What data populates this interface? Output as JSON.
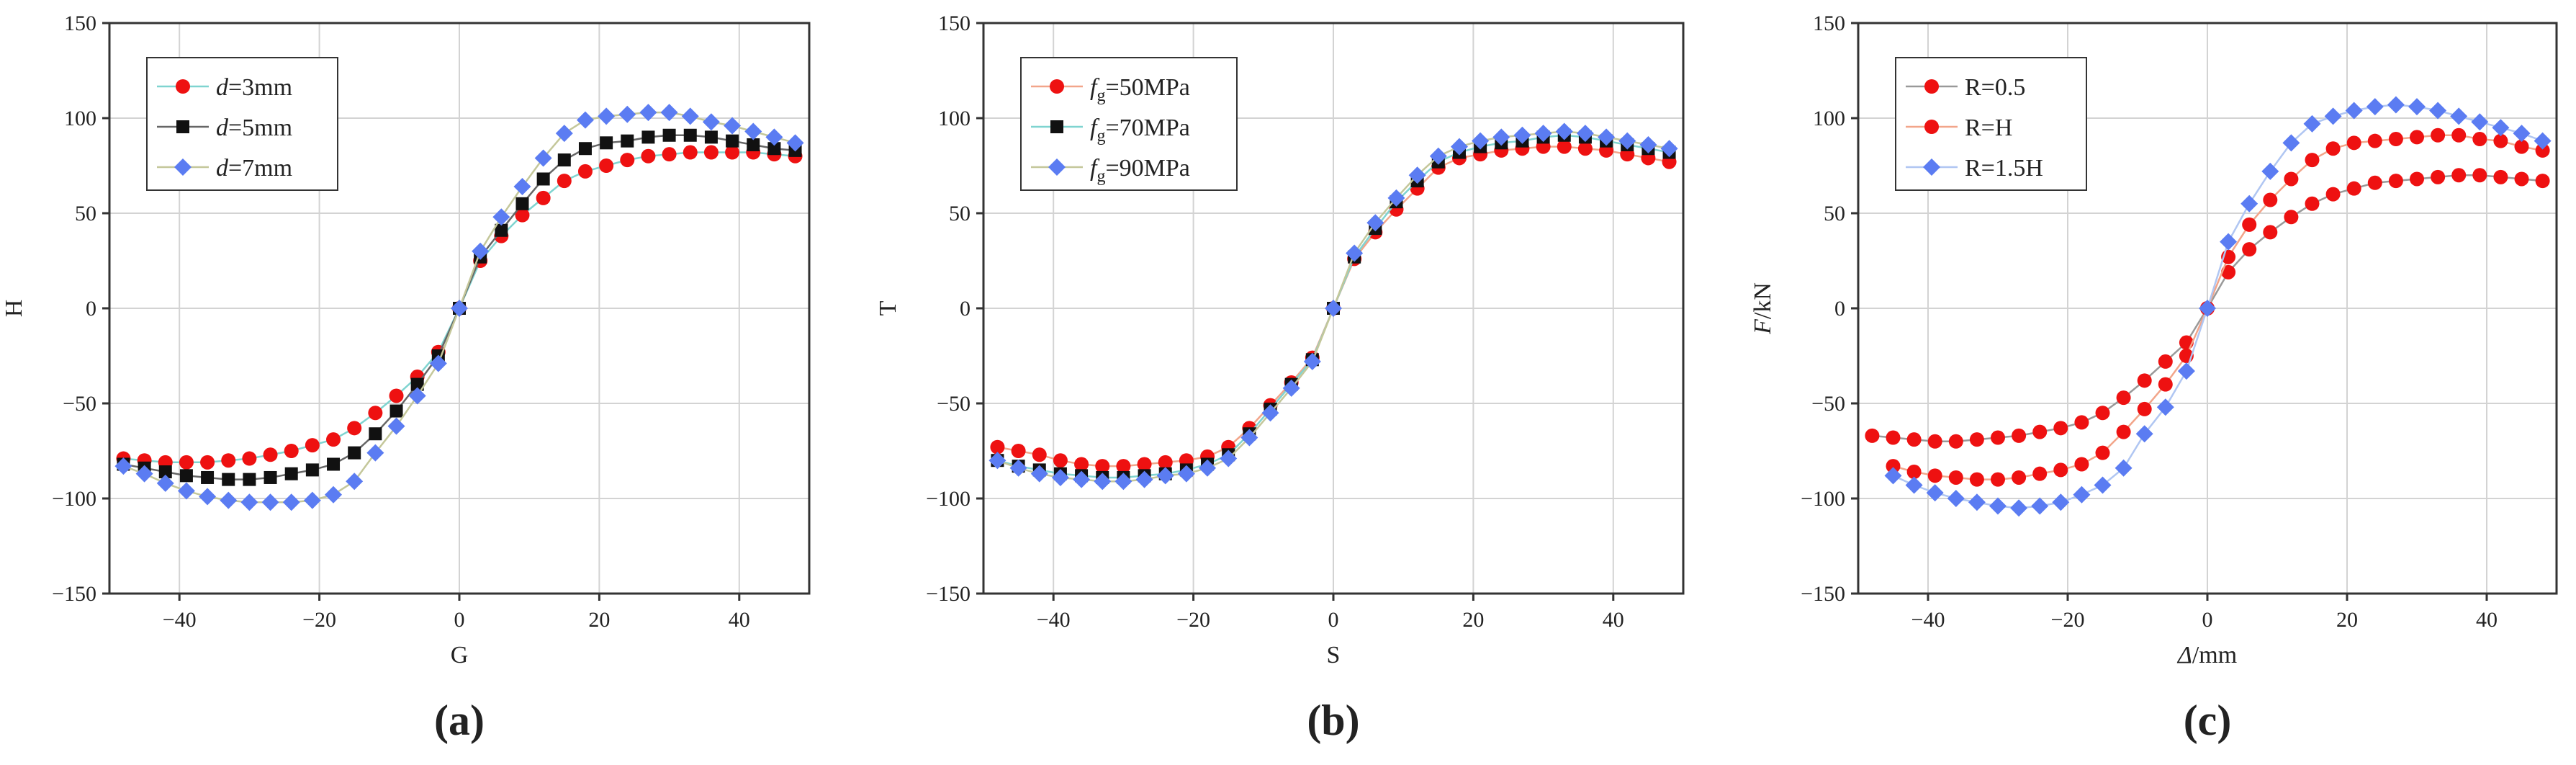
{
  "chart_data": [
    {
      "type": "line",
      "panel_label": "(a)",
      "xlabel": "G",
      "ylabel": "H",
      "xlim": [
        -50,
        50
      ],
      "ylim": [
        -150,
        150
      ],
      "xticks": [
        -40,
        -20,
        0,
        20,
        40
      ],
      "yticks": [
        -150,
        -100,
        -50,
        0,
        50,
        100,
        150
      ],
      "grid": true,
      "legend_position": "top-left",
      "series": [
        {
          "name": "d=3mm",
          "legend_italic": "d",
          "legend_rest": "=3mm",
          "marker": "circle",
          "color": "#ee1111",
          "line_color": "#7fd4d0",
          "x": [
            -48,
            -45,
            -42,
            -39,
            -36,
            -33,
            -30,
            -27,
            -24,
            -21,
            -18,
            -15,
            -12,
            -9,
            -6,
            -3,
            0,
            3,
            6,
            9,
            12,
            15,
            18,
            21,
            24,
            27,
            30,
            33,
            36,
            39,
            42,
            45,
            48
          ],
          "y": [
            -79,
            -80,
            -81,
            -81,
            -81,
            -80,
            -79,
            -77,
            -75,
            -72,
            -69,
            -63,
            -55,
            -46,
            -36,
            -23,
            0,
            25,
            38,
            49,
            58,
            67,
            72,
            75,
            78,
            80,
            81,
            82,
            82,
            82,
            82,
            81,
            80
          ]
        },
        {
          "name": "d=5mm",
          "legend_italic": "d",
          "legend_rest": "=5mm",
          "marker": "square",
          "color": "#111111",
          "line_color": "#666666",
          "x": [
            -48,
            -45,
            -42,
            -39,
            -36,
            -33,
            -30,
            -27,
            -24,
            -21,
            -18,
            -15,
            -12,
            -9,
            -6,
            -3,
            0,
            3,
            6,
            9,
            12,
            15,
            18,
            21,
            24,
            27,
            30,
            33,
            36,
            39,
            42,
            45,
            48
          ],
          "y": [
            -82,
            -84,
            -86,
            -88,
            -89,
            -90,
            -90,
            -89,
            -87,
            -85,
            -82,
            -76,
            -66,
            -54,
            -40,
            -25,
            0,
            27,
            41,
            55,
            68,
            78,
            84,
            87,
            88,
            90,
            91,
            91,
            90,
            88,
            86,
            84,
            83
          ]
        },
        {
          "name": "d=7mm",
          "legend_italic": "d",
          "legend_rest": "=7mm",
          "marker": "diamond",
          "color": "#5b7cf2",
          "line_color": "#c4c79a",
          "x": [
            -48,
            -45,
            -42,
            -39,
            -36,
            -33,
            -30,
            -27,
            -24,
            -21,
            -18,
            -15,
            -12,
            -9,
            -6,
            -3,
            0,
            3,
            6,
            9,
            12,
            15,
            18,
            21,
            24,
            27,
            30,
            33,
            36,
            39,
            42,
            45,
            48
          ],
          "y": [
            -83,
            -87,
            -92,
            -96,
            -99,
            -101,
            -102,
            -102,
            -102,
            -101,
            -98,
            -91,
            -76,
            -62,
            -46,
            -29,
            0,
            30,
            48,
            64,
            79,
            92,
            99,
            101,
            102,
            103,
            103,
            101,
            98,
            96,
            93,
            90,
            87
          ]
        }
      ]
    },
    {
      "type": "line",
      "panel_label": "(b)",
      "xlabel": "S",
      "ylabel": "T",
      "xlim": [
        -50,
        50
      ],
      "ylim": [
        -150,
        150
      ],
      "xticks": [
        -40,
        -20,
        0,
        20,
        40
      ],
      "yticks": [
        -150,
        -100,
        -50,
        0,
        50,
        100,
        150
      ],
      "grid": true,
      "legend_position": "top-left",
      "series": [
        {
          "name": "fg=50MPa",
          "legend_italic": "f",
          "legend_sub": "g",
          "legend_rest": "=50MPa",
          "marker": "circle",
          "color": "#ee1111",
          "line_color": "#f2a58a",
          "x": [
            -48,
            -45,
            -42,
            -39,
            -36,
            -33,
            -30,
            -27,
            -24,
            -21,
            -18,
            -15,
            -12,
            -9,
            -6,
            -3,
            0,
            3,
            6,
            9,
            12,
            15,
            18,
            21,
            24,
            27,
            30,
            33,
            36,
            39,
            42,
            45,
            48
          ],
          "y": [
            -73,
            -75,
            -77,
            -80,
            -82,
            -83,
            -83,
            -82,
            -81,
            -80,
            -78,
            -73,
            -63,
            -51,
            -39,
            -26,
            0,
            26,
            40,
            52,
            63,
            74,
            79,
            81,
            83,
            84,
            85,
            85,
            84,
            83,
            81,
            79,
            77
          ]
        },
        {
          "name": "fg=70MPa",
          "legend_italic": "f",
          "legend_sub": "g",
          "legend_rest": "=70MPa",
          "marker": "square",
          "color": "#111111",
          "line_color": "#7fd4d0",
          "x": [
            -48,
            -45,
            -42,
            -39,
            -36,
            -33,
            -30,
            -27,
            -24,
            -21,
            -18,
            -15,
            -12,
            -9,
            -6,
            -3,
            0,
            3,
            6,
            9,
            12,
            15,
            18,
            21,
            24,
            27,
            30,
            33,
            36,
            39,
            42,
            45,
            48
          ],
          "y": [
            -80,
            -83,
            -85,
            -87,
            -88,
            -89,
            -89,
            -88,
            -87,
            -85,
            -82,
            -77,
            -66,
            -53,
            -40,
            -27,
            0,
            27,
            42,
            56,
            67,
            77,
            82,
            85,
            87,
            88,
            90,
            91,
            90,
            88,
            86,
            84,
            82
          ]
        },
        {
          "name": "fg=90MPa",
          "legend_italic": "f",
          "legend_sub": "g",
          "legend_rest": "=90MPa",
          "marker": "diamond",
          "color": "#5b7cf2",
          "line_color": "#c4c79a",
          "x": [
            -48,
            -45,
            -42,
            -39,
            -36,
            -33,
            -30,
            -27,
            -24,
            -21,
            -18,
            -15,
            -12,
            -9,
            -6,
            -3,
            0,
            3,
            6,
            9,
            12,
            15,
            18,
            21,
            24,
            27,
            30,
            33,
            36,
            39,
            42,
            45,
            48
          ],
          "y": [
            -80,
            -84,
            -87,
            -89,
            -90,
            -91,
            -91,
            -90,
            -88,
            -87,
            -84,
            -79,
            -68,
            -55,
            -42,
            -28,
            0,
            29,
            45,
            58,
            70,
            80,
            85,
            88,
            90,
            91,
            92,
            93,
            92,
            90,
            88,
            86,
            84
          ]
        }
      ]
    },
    {
      "type": "line",
      "panel_label": "(c)",
      "xlabel": "Δ/mm",
      "xlabel_italic": "Δ",
      "xlabel_rest": "/mm",
      "ylabel": "F/kN",
      "ylabel_italic": "F",
      "ylabel_rest": "/kN",
      "xlim": [
        -50,
        50
      ],
      "ylim": [
        -150,
        150
      ],
      "xticks": [
        -40,
        -20,
        0,
        20,
        40
      ],
      "yticks": [
        -150,
        -100,
        -50,
        0,
        50,
        100,
        150
      ],
      "grid": true,
      "legend_position": "top-left",
      "series": [
        {
          "name": "R=0.5",
          "legend_rest": "R=0.5",
          "marker": "circle",
          "color": "#ee1111",
          "line_color": "#999999",
          "x": [
            -48,
            -45,
            -42,
            -39,
            -36,
            -33,
            -30,
            -27,
            -24,
            -21,
            -18,
            -15,
            -12,
            -9,
            -6,
            -3,
            0,
            3,
            6,
            9,
            12,
            15,
            18,
            21,
            24,
            27,
            30,
            33,
            36,
            39,
            42,
            45,
            48
          ],
          "y": [
            -67,
            -68,
            -69,
            -70,
            -70,
            -69,
            -68,
            -67,
            -65,
            -63,
            -60,
            -55,
            -47,
            -38,
            -28,
            -18,
            0,
            19,
            31,
            40,
            48,
            55,
            60,
            63,
            66,
            67,
            68,
            69,
            70,
            70,
            69,
            68,
            67
          ]
        },
        {
          "name": "R=H",
          "legend_rest": "R=H",
          "marker": "circle",
          "color": "#ee1111",
          "line_color": "#f2a58a",
          "x": [
            -45,
            -42,
            -39,
            -36,
            -33,
            -30,
            -27,
            -24,
            -21,
            -18,
            -15,
            -12,
            -9,
            -6,
            -3,
            0,
            3,
            6,
            9,
            12,
            15,
            18,
            21,
            24,
            27,
            30,
            33,
            36,
            39,
            42,
            45,
            48
          ],
          "y": [
            -83,
            -86,
            -88,
            -89,
            -90,
            -90,
            -89,
            -87,
            -85,
            -82,
            -76,
            -65,
            -53,
            -40,
            -25,
            0,
            27,
            44,
            57,
            68,
            78,
            84,
            87,
            88,
            89,
            90,
            91,
            91,
            89,
            88,
            85,
            83
          ]
        },
        {
          "name": "R=1.5H",
          "legend_rest": "R=1.5H",
          "marker": "diamond",
          "color": "#5b7cf2",
          "line_color": "#b0c6f2",
          "x": [
            -45,
            -42,
            -39,
            -36,
            -33,
            -30,
            -27,
            -24,
            -21,
            -18,
            -15,
            -12,
            -9,
            -6,
            -3,
            0,
            3,
            6,
            9,
            12,
            15,
            18,
            21,
            24,
            27,
            30,
            33,
            36,
            39,
            42,
            45,
            48
          ],
          "y": [
            -88,
            -93,
            -97,
            -100,
            -102,
            -104,
            -105,
            -104,
            -102,
            -98,
            -93,
            -84,
            -66,
            -52,
            -33,
            0,
            35,
            55,
            72,
            87,
            97,
            101,
            104,
            106,
            107,
            106,
            104,
            101,
            98,
            95,
            92,
            88
          ]
        }
      ]
    }
  ]
}
